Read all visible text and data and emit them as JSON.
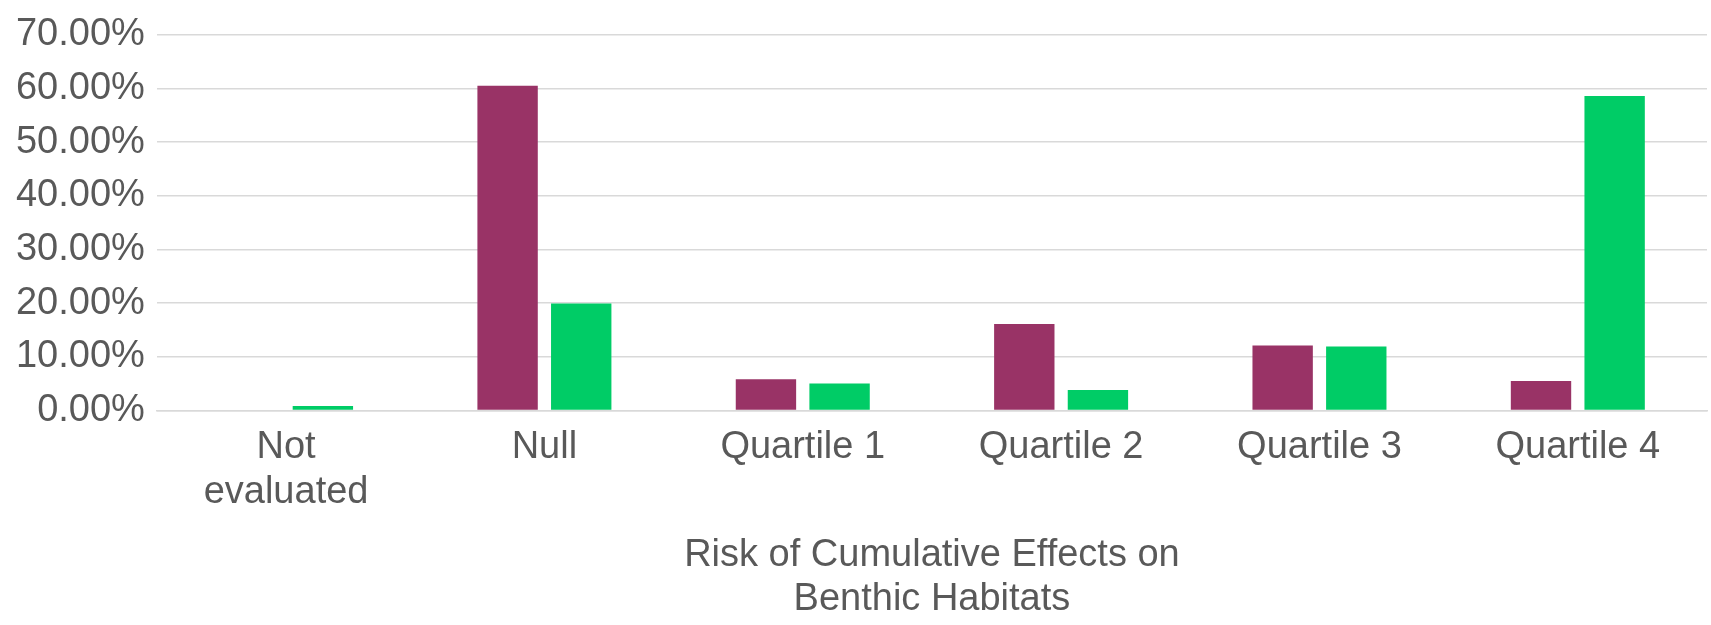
{
  "chart_data": {
    "type": "bar",
    "xlabel": "Risk of Cumulative Effects on Benthic Habitats",
    "categories": [
      "Not evaluated",
      "Null",
      "Quartile 1",
      "Quartile 2",
      "Quartile 3",
      "Quartile 4"
    ],
    "series": [
      {
        "color": "#993366",
        "values": [
          0,
          60.5,
          5.8,
          16.1,
          12.1,
          5.5
        ]
      },
      {
        "color": "#00cc66",
        "values": [
          0.8,
          19.9,
          5.0,
          3.8,
          11.9,
          58.6
        ]
      }
    ],
    "ylim": [
      0,
      70
    ],
    "yticks": [
      {
        "value": 0,
        "label": "0.00%"
      },
      {
        "value": 10,
        "label": "10.00%"
      },
      {
        "value": 20,
        "label": "20.00%"
      },
      {
        "value": 30,
        "label": "30.00%"
      },
      {
        "value": 40,
        "label": "40.00%"
      },
      {
        "value": 50,
        "label": "50.00%"
      },
      {
        "value": 60,
        "label": "60.00%"
      },
      {
        "value": 70,
        "label": "70.00%"
      }
    ],
    "grid": "y",
    "legend": false
  }
}
